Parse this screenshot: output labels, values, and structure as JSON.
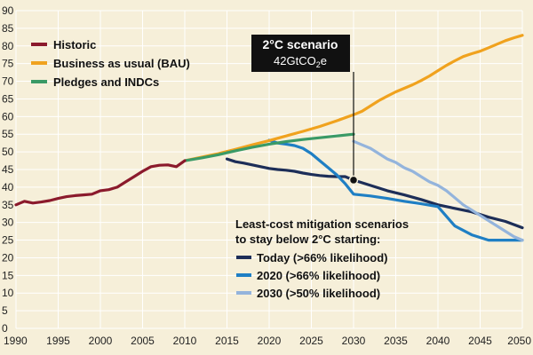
{
  "chart_data": {
    "type": "line",
    "title": "",
    "xlabel": "",
    "ylabel": "",
    "xlim": [
      1990,
      2050
    ],
    "ylim": [
      0,
      90
    ],
    "grid": true,
    "xticks": [
      1990,
      1995,
      2000,
      2005,
      2010,
      2015,
      2020,
      2025,
      2030,
      2035,
      2040,
      2045,
      2050
    ],
    "yticks": [
      0,
      5,
      10,
      15,
      20,
      25,
      30,
      35,
      40,
      45,
      50,
      55,
      60,
      65,
      70,
      75,
      80,
      85,
      90
    ],
    "series": [
      {
        "name": "Historic",
        "color": "#8b1a2c",
        "x": [
          1990,
          1991,
          1992,
          1993,
          1994,
          1995,
          1996,
          1997,
          1998,
          1999,
          2000,
          2001,
          2002,
          2003,
          2004,
          2005,
          2006,
          2007,
          2008,
          2009,
          2010
        ],
        "y": [
          35,
          36,
          35.5,
          35.8,
          36.2,
          36.8,
          37.3,
          37.6,
          37.8,
          38,
          39,
          39.3,
          40,
          41.5,
          43,
          44.5,
          45.8,
          46.2,
          46.3,
          45.8,
          47.5
        ]
      },
      {
        "name": "Business as usual (BAU)",
        "color": "#f0a21e",
        "x": [
          2010,
          2012,
          2014,
          2016,
          2018,
          2020,
          2022,
          2024,
          2026,
          2028,
          2030,
          2031,
          2032,
          2033,
          2034,
          2035,
          2036,
          2037,
          2038,
          2039,
          2040,
          2041,
          2042,
          2043,
          2044,
          2045,
          2046,
          2047,
          2048,
          2049,
          2050
        ],
        "y": [
          47.5,
          48.5,
          49.5,
          50.7,
          52,
          53.2,
          54.5,
          55.8,
          57.2,
          58.8,
          60.5,
          61.5,
          63,
          64.5,
          65.8,
          67,
          68,
          69,
          70.2,
          71.5,
          73,
          74.5,
          75.8,
          77,
          77.8,
          78.5,
          79.5,
          80.5,
          81.5,
          82.3,
          83
        ]
      },
      {
        "name": "Pledges and INDCs",
        "color": "#3a9a66",
        "x": [
          2010,
          2012,
          2014,
          2016,
          2018,
          2020,
          2022,
          2024,
          2026,
          2028,
          2030
        ],
        "y": [
          47.5,
          48.3,
          49.2,
          50.3,
          51.3,
          52.2,
          52.9,
          53.5,
          54,
          54.5,
          55
        ]
      },
      {
        "name": "Today (>66% likelihood)",
        "color": "#1d2e58",
        "x": [
          2015,
          2016,
          2017,
          2018,
          2019,
          2020,
          2021,
          2022,
          2023,
          2024,
          2025,
          2026,
          2027,
          2028,
          2029,
          2030,
          2032,
          2034,
          2036,
          2038,
          2040,
          2042,
          2044,
          2046,
          2048,
          2050
        ],
        "y": [
          48,
          47.2,
          46.8,
          46.3,
          45.8,
          45.3,
          45,
          44.8,
          44.5,
          44,
          43.6,
          43.3,
          43.1,
          43,
          43,
          42,
          40.5,
          39,
          37.8,
          36.5,
          35,
          34,
          33,
          31.5,
          30.3,
          28.5
        ]
      },
      {
        "name": "2020 (>66% likelihood)",
        "color": "#1f7fc4",
        "x": [
          2020,
          2021,
          2022,
          2023,
          2024,
          2025,
          2026,
          2027,
          2028,
          2029,
          2030,
          2032,
          2034,
          2036,
          2038,
          2040,
          2042,
          2044,
          2046,
          2048,
          2050
        ],
        "y": [
          53.3,
          52.5,
          52.2,
          51.8,
          51,
          49.5,
          47.5,
          45.5,
          43.5,
          41,
          38,
          37.5,
          36.8,
          36,
          35.3,
          34.5,
          29,
          26.5,
          25,
          25,
          25
        ]
      },
      {
        "name": "2030 (>50% likelihood)",
        "color": "#94b4dc",
        "x": [
          2030,
          2031,
          2032,
          2033,
          2034,
          2035,
          2036,
          2037,
          2038,
          2039,
          2040,
          2041,
          2042,
          2043,
          2044,
          2045,
          2046,
          2047,
          2048,
          2049,
          2050
        ],
        "y": [
          53,
          52,
          51,
          49.5,
          48,
          47,
          45.5,
          44.5,
          43,
          41.5,
          40.5,
          39,
          37,
          35,
          33.5,
          32,
          30.5,
          29,
          27.5,
          26,
          25
        ]
      }
    ],
    "legend": {
      "position": "top-left",
      "items": [
        "Historic",
        "Business as usual (BAU)",
        "Pledges and INDCs"
      ]
    },
    "annotation": {
      "title": "2°C scenario",
      "value": "42GtCO",
      "value_sub": "2",
      "value_suffix": "e",
      "x": 2030,
      "y": 42,
      "box_color": "#111111"
    },
    "scenario_legend": {
      "title_line1": "Least-cost mitigation scenarios",
      "title_line2": "to stay below 2°C starting:",
      "items": [
        "Today (>66% likelihood)",
        "2020 (>66% likelihood)",
        "2030 (>50% likelihood)"
      ]
    },
    "background_color": "#f6efd9",
    "grid_color": "#ffffff"
  }
}
